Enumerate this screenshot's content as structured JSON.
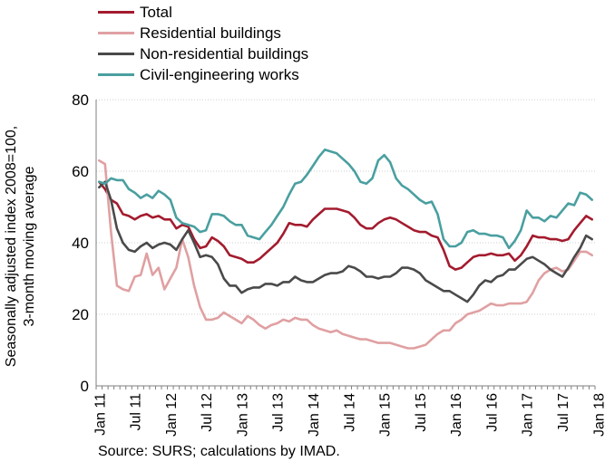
{
  "chart_data": {
    "type": "line",
    "title": "",
    "xlabel": "",
    "ylabel_lines": [
      "Seasonally adjusted index 2008=100,",
      "3-month moving average"
    ],
    "ylim": [
      0,
      80
    ],
    "yticks": [
      0,
      20,
      40,
      60,
      80
    ],
    "xtick_labels": [
      "Jan 11",
      "Jul 11",
      "Jan 12",
      "Jul 12",
      "Jan 13",
      "Jul 13",
      "Jan 14",
      "Jul 14",
      "Jan 15",
      "Jul 15",
      "Jan 16",
      "Jul 16",
      "Jan 17",
      "Jul 17",
      "Jan 18"
    ],
    "x_start": "Jan 11",
    "x_end": "Mar 18",
    "grid": "horizontal",
    "legend_position": "top-left",
    "series": [
      {
        "name": "Total",
        "color": "#a31b2e",
        "values": [
          57,
          55,
          52,
          51,
          48,
          47.5,
          46.5,
          47.5,
          48,
          47,
          47.5,
          46.5,
          46.5,
          44,
          45,
          44.5,
          41,
          38.5,
          39,
          41.5,
          40.5,
          39,
          36.5,
          36,
          35.5,
          34.5,
          34.5,
          35.5,
          37,
          38.5,
          40,
          42.5,
          45.5,
          45,
          45,
          44.5,
          46.5,
          48,
          49.5,
          49.5,
          49.5,
          49,
          48.5,
          47,
          45,
          44,
          44,
          45.5,
          46.5,
          47,
          46.5,
          45.5,
          44.5,
          43.5,
          43,
          43,
          42,
          41.5,
          38,
          33.5,
          32.5,
          33,
          34.5,
          36,
          36.5,
          36.5,
          37,
          36.5,
          36.5,
          37,
          35,
          36.5,
          39,
          42,
          41.5,
          41.5,
          41,
          41,
          40.5,
          41,
          43.5,
          45.5,
          47.5,
          46.5
        ]
      },
      {
        "name": "Residential buildings",
        "color": "#e0a0a2",
        "values": [
          63,
          62,
          43,
          28,
          27,
          26.5,
          30.5,
          31,
          37,
          31,
          33,
          27,
          30,
          33,
          41,
          36,
          28,
          22,
          18.5,
          18.5,
          19,
          20.5,
          19.5,
          18.5,
          17.5,
          19.5,
          18.5,
          17,
          16,
          17,
          17.5,
          18.5,
          18,
          19,
          18.5,
          18.5,
          17,
          16,
          15.5,
          15,
          15.5,
          14.5,
          14,
          13.5,
          13,
          13,
          12.5,
          12,
          12,
          12,
          11.5,
          11,
          10.5,
          10.5,
          11,
          11.5,
          13,
          14.5,
          15.5,
          15.5,
          17.5,
          18.5,
          20,
          20.5,
          21,
          22,
          23,
          22.5,
          22.5,
          23,
          23,
          23,
          23.5,
          26,
          29.5,
          31.5,
          32.5,
          33,
          32,
          32.5,
          35,
          37.5,
          37.5,
          36.5
        ]
      },
      {
        "name": "Non-residential buildings",
        "color": "#4a4a4a",
        "values": [
          55.5,
          57,
          52,
          44,
          40,
          38,
          37.5,
          39,
          40,
          38.5,
          39.5,
          40,
          39.5,
          38,
          41,
          43.5,
          40,
          36,
          36.5,
          36,
          34,
          30,
          28,
          28,
          26,
          27,
          27.5,
          27.5,
          28.5,
          28.5,
          28,
          29,
          29,
          30.5,
          29.5,
          29,
          29,
          30,
          31,
          31.5,
          31.5,
          32,
          33.5,
          33,
          32,
          30.5,
          30.5,
          30,
          30.5,
          30.5,
          31.5,
          33,
          33,
          32.5,
          31.5,
          29.5,
          28.5,
          27.5,
          26.5,
          26.5,
          25.5,
          24.5,
          23.5,
          25.5,
          28,
          29.5,
          29,
          30.5,
          31,
          32.5,
          32.5,
          34,
          35.5,
          36,
          35,
          34,
          32.5,
          31.5,
          30.5,
          33,
          36,
          38.5,
          42,
          41
        ]
      },
      {
        "name": "Civil-engineering works",
        "color": "#4a9fa0",
        "values": [
          57,
          56.5,
          58,
          57.5,
          57.5,
          55,
          54,
          52.5,
          53.5,
          52.5,
          54.5,
          53.5,
          52,
          47,
          45.5,
          45,
          44.5,
          43,
          43.5,
          48,
          48,
          47.5,
          46,
          45,
          45,
          42,
          41.5,
          41,
          43,
          45,
          47.5,
          50,
          53.5,
          56.5,
          57,
          59,
          61.5,
          64,
          66,
          65.5,
          65,
          63.5,
          62,
          60,
          57,
          56.5,
          58,
          63,
          64.5,
          62.5,
          58,
          56,
          55,
          53.5,
          52,
          51,
          51.5,
          48,
          41,
          39,
          39,
          40,
          43,
          43.5,
          42.5,
          42.5,
          42,
          42,
          41.5,
          38.5,
          40.5,
          43.5,
          49,
          47,
          47,
          46,
          47.5,
          47,
          49,
          51,
          50.5,
          54,
          53.5,
          52
        ]
      }
    ]
  },
  "source": "Source: SURS; calculations by IMAD."
}
